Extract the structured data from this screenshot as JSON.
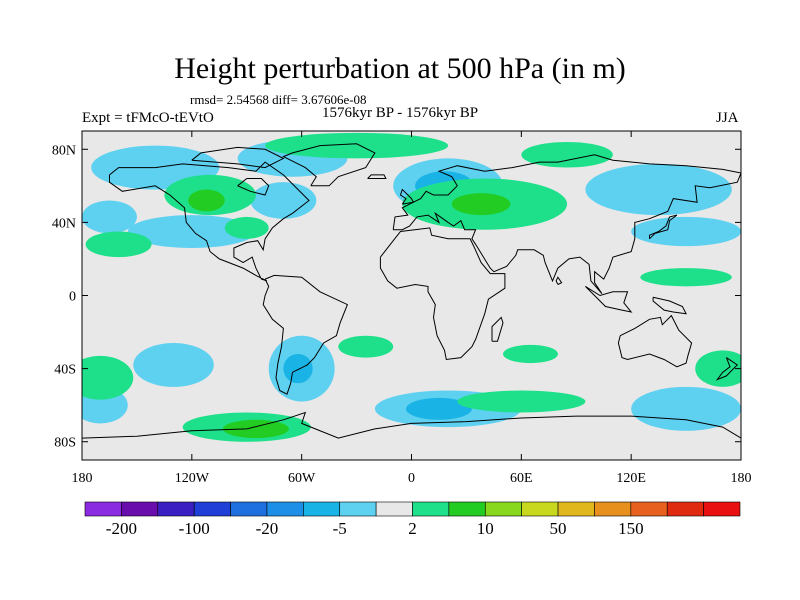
{
  "title": "Height perturbation at 500 hPa (in m)",
  "stats": "rmsd= 2.54568 diff= 3.67606e-08",
  "experiment": "Expt = tFMcO-tEVtO",
  "period": "1576kyr BP - 1576kyr BP",
  "season": "JJA",
  "map": {
    "projection": "cylindrical-equidistant",
    "lon_range": [
      -180,
      180
    ],
    "lat_range": [
      -90,
      90
    ],
    "ocean_color": "#e8e8e8",
    "coastline_color": "#000000"
  },
  "lat_ticks": [
    {
      "value": 80,
      "label": "80N"
    },
    {
      "value": 40,
      "label": "40N"
    },
    {
      "value": 0,
      "label": "0"
    },
    {
      "value": -40,
      "label": "40S"
    },
    {
      "value": -80,
      "label": "80S"
    }
  ],
  "lon_ticks": [
    {
      "value": -180,
      "label": "180"
    },
    {
      "value": -120,
      "label": "120W"
    },
    {
      "value": -60,
      "label": "60W"
    },
    {
      "value": 0,
      "label": "0"
    },
    {
      "value": 60,
      "label": "60E"
    },
    {
      "value": 120,
      "label": "120E"
    },
    {
      "value": 180,
      "label": "180"
    }
  ],
  "colorbar": {
    "colors": [
      "#8a2be2",
      "#6a0dad",
      "#3b1fc2",
      "#1f3fd6",
      "#1e6fe0",
      "#1e8fe6",
      "#19b3e6",
      "#5ed0f0",
      "#e8e8e8",
      "#1ee08a",
      "#22cc22",
      "#88d81e",
      "#c8d81e",
      "#e0b81e",
      "#e8901e",
      "#e8601e",
      "#e02a10",
      "#e81010"
    ],
    "labels": [
      {
        "boundary": 1,
        "text": "-200"
      },
      {
        "boundary": 3,
        "text": "-100"
      },
      {
        "boundary": 5,
        "text": "-20"
      },
      {
        "boundary": 7,
        "text": "-5"
      },
      {
        "boundary": 9,
        "text": "2"
      },
      {
        "boundary": 11,
        "text": "10"
      },
      {
        "boundary": 13,
        "text": "50"
      },
      {
        "boundary": 15,
        "text": "150"
      }
    ]
  },
  "regions": [
    {
      "level": "negative",
      "color": "#5ed0f0",
      "lon": -140,
      "lat": 70,
      "rlon": 35,
      "rlat": 12
    },
    {
      "level": "negative",
      "color": "#5ed0f0",
      "lon": -65,
      "lat": 75,
      "rlon": 30,
      "rlat": 10
    },
    {
      "level": "negative",
      "color": "#5ed0f0",
      "lon": -70,
      "lat": 52,
      "rlon": 18,
      "rlat": 10
    },
    {
      "level": "negative",
      "color": "#5ed0f0",
      "lon": -120,
      "lat": 35,
      "rlon": 35,
      "rlat": 9
    },
    {
      "level": "negative",
      "color": "#5ed0f0",
      "lon": 20,
      "lat": 60,
      "rlon": 30,
      "rlat": 15
    },
    {
      "level": "negative",
      "color": "#19b3e6",
      "lon": 18,
      "lat": 60,
      "rlon": 16,
      "rlat": 8
    },
    {
      "level": "negative",
      "color": "#5ed0f0",
      "lon": 135,
      "lat": 58,
      "rlon": 40,
      "rlat": 14
    },
    {
      "level": "negative",
      "color": "#5ed0f0",
      "lon": 150,
      "lat": 35,
      "rlon": 30,
      "rlat": 8
    },
    {
      "level": "negative",
      "color": "#5ed0f0",
      "lon": -165,
      "lat": 43,
      "rlon": 15,
      "rlat": 9
    },
    {
      "level": "negative",
      "color": "#5ed0f0",
      "lon": -130,
      "lat": -38,
      "rlon": 22,
      "rlat": 12
    },
    {
      "level": "negative",
      "color": "#5ed0f0",
      "lon": -60,
      "lat": -40,
      "rlon": 18,
      "rlat": 18
    },
    {
      "level": "negative",
      "color": "#19b3e6",
      "lon": -62,
      "lat": -40,
      "rlon": 8,
      "rlat": 8
    },
    {
      "level": "negative",
      "color": "#5ed0f0",
      "lon": 20,
      "lat": -62,
      "rlon": 40,
      "rlat": 10
    },
    {
      "level": "negative",
      "color": "#19b3e6",
      "lon": 15,
      "lat": -62,
      "rlon": 18,
      "rlat": 6
    },
    {
      "level": "negative",
      "color": "#5ed0f0",
      "lon": 150,
      "lat": -62,
      "rlon": 30,
      "rlat": 12
    },
    {
      "level": "negative",
      "color": "#5ed0f0",
      "lon": -170,
      "lat": -60,
      "rlon": 15,
      "rlat": 10
    },
    {
      "level": "positive",
      "color": "#1ee08a",
      "lon": -110,
      "lat": 55,
      "rlon": 25,
      "rlat": 11
    },
    {
      "level": "positive",
      "color": "#22cc22",
      "lon": -112,
      "lat": 52,
      "rlon": 10,
      "rlat": 6
    },
    {
      "level": "positive",
      "color": "#1ee08a",
      "lon": -30,
      "lat": 82,
      "rlon": 50,
      "rlat": 7
    },
    {
      "level": "positive",
      "color": "#1ee08a",
      "lon": 40,
      "lat": 50,
      "rlon": 45,
      "rlat": 14
    },
    {
      "level": "positive",
      "color": "#22cc22",
      "lon": 38,
      "lat": 50,
      "rlon": 16,
      "rlat": 6
    },
    {
      "level": "positive",
      "color": "#1ee08a",
      "lon": 85,
      "lat": 77,
      "rlon": 25,
      "rlat": 7
    },
    {
      "level": "positive",
      "color": "#1ee08a",
      "lon": 150,
      "lat": 10,
      "rlon": 25,
      "rlat": 5
    },
    {
      "level": "positive",
      "color": "#1ee08a",
      "lon": -90,
      "lat": 37,
      "rlon": 12,
      "rlat": 6
    },
    {
      "level": "positive",
      "color": "#1ee08a",
      "lon": -160,
      "lat": 28,
      "rlon": 18,
      "rlat": 7
    },
    {
      "level": "positive",
      "color": "#1ee08a",
      "lon": -170,
      "lat": -45,
      "rlon": 18,
      "rlat": 12
    },
    {
      "level": "positive",
      "color": "#1ee08a",
      "lon": -25,
      "lat": -28,
      "rlon": 15,
      "rlat": 6
    },
    {
      "level": "positive",
      "color": "#1ee08a",
      "lon": 65,
      "lat": -32,
      "rlon": 15,
      "rlat": 5
    },
    {
      "level": "positive",
      "color": "#1ee08a",
      "lon": 60,
      "lat": -58,
      "rlon": 35,
      "rlat": 6
    },
    {
      "level": "positive",
      "color": "#1ee08a",
      "lon": -90,
      "lat": -72,
      "rlon": 35,
      "rlat": 8
    },
    {
      "level": "positive",
      "color": "#22cc22",
      "lon": -85,
      "lat": -73,
      "rlon": 18,
      "rlat": 5
    },
    {
      "level": "positive",
      "color": "#1ee08a",
      "lon": 170,
      "lat": -40,
      "rlon": 15,
      "rlat": 10
    }
  ]
}
